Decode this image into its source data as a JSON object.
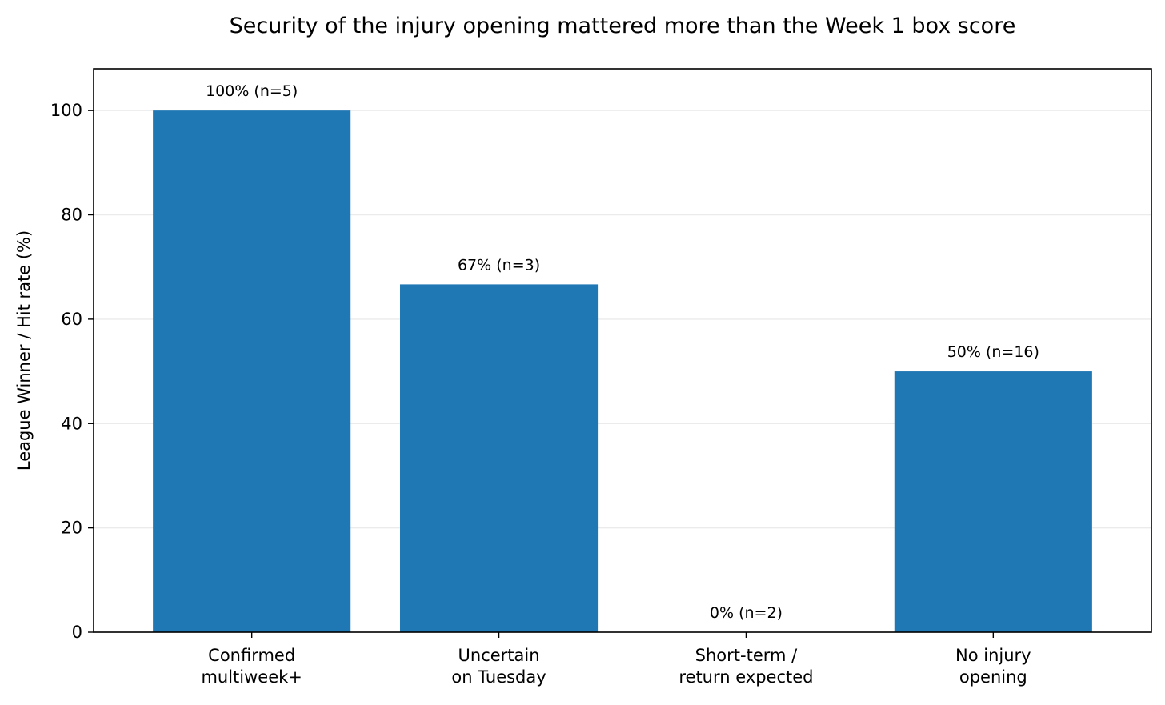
{
  "chart_data": {
    "type": "bar",
    "title": "Security of the injury opening mattered more than the Week 1 box score",
    "xlabel": "",
    "ylabel": "League Winner / Hit rate (%)",
    "categories": [
      [
        "Confirmed",
        "multiweek+"
      ],
      [
        "Uncertain",
        "on Tuesday"
      ],
      [
        "Short-term /",
        "return expected"
      ],
      [
        "No injury",
        "opening"
      ]
    ],
    "values": [
      100,
      66.67,
      0,
      50
    ],
    "data_labels": [
      "100% (n=5)",
      "67% (n=3)",
      "0% (n=2)",
      "50% (n=16)"
    ],
    "ylim": [
      0,
      108
    ],
    "yticks": [
      0,
      20,
      40,
      60,
      80,
      100
    ],
    "grid": "y",
    "bar_color": "#1f77b4",
    "grid_color": "#ebebeb"
  }
}
